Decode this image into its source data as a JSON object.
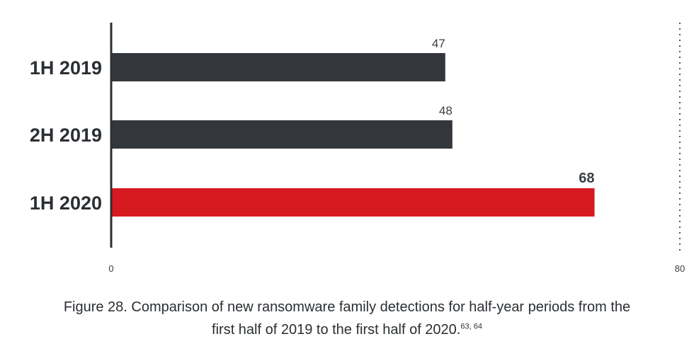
{
  "chart_data": {
    "type": "bar",
    "orientation": "horizontal",
    "categories": [
      "1H 2019",
      "2H 2019",
      "1H 2020"
    ],
    "values": [
      47,
      48,
      68
    ],
    "value_labels": [
      "47",
      "48",
      "68"
    ],
    "xlim": [
      0,
      80
    ],
    "x_ticks": [
      "0",
      "80"
    ],
    "highlight_index": 2,
    "colors": {
      "default_bar": "#33373b",
      "highlight_bar": "#d71920",
      "axis": "#2b2f33"
    },
    "grid": false,
    "legend": "none"
  },
  "caption": {
    "line1": "Figure 28. Comparison of new ransomware family detections for half-year periods from the",
    "line2": "first half of 2019 to the first half of 2020.",
    "refs": "63, 64"
  }
}
